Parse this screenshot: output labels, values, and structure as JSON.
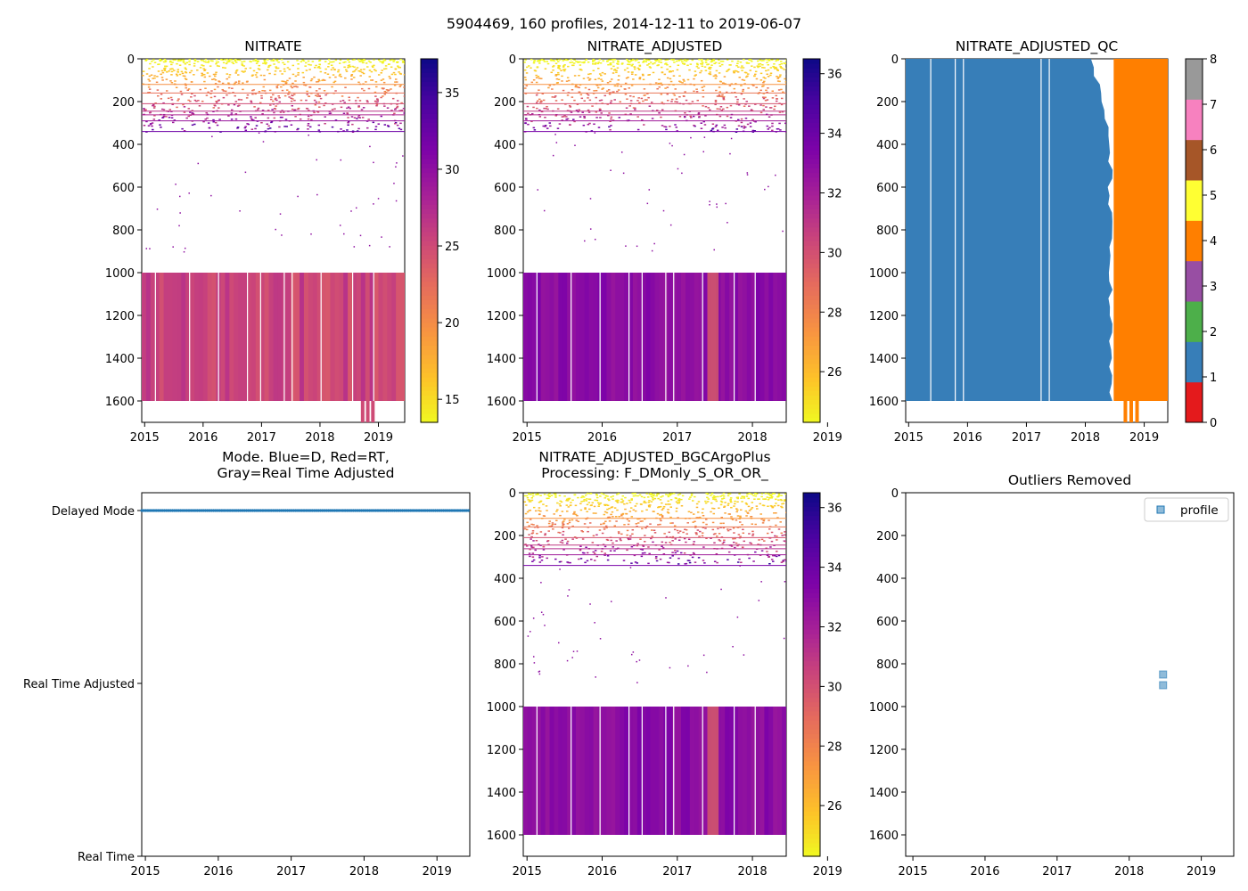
{
  "figure": {
    "suptitle": "5904469, 160 profiles, 2014-12-11 to 2019-06-07",
    "year_ticks": [
      "2015",
      "2016",
      "2017",
      "2018",
      "2019"
    ],
    "depth_ticks": [
      "0",
      "200",
      "400",
      "600",
      "800",
      "1000",
      "1200",
      "1400",
      "1600"
    ]
  },
  "chart_data": [
    {
      "id": "nitrate",
      "type": "heatmap",
      "title": "NITRATE",
      "x_range": [
        2014.95,
        2019.45
      ],
      "y_range": [
        1700,
        0
      ],
      "colormap": "plasma_r",
      "colorbar": {
        "range": [
          13.5,
          37.2
        ],
        "ticks": [
          15,
          20,
          25,
          30,
          35
        ],
        "labels": [
          "15",
          "20",
          "25",
          "30",
          "35"
        ]
      },
      "regions": [
        {
          "kind": "surface-speckle",
          "x": [
            2014.95,
            2019.45
          ],
          "depth": [
            0,
            340
          ],
          "value_range": [
            13,
            37
          ]
        },
        {
          "kind": "sparse-points",
          "x": [
            2015.0,
            2019.45
          ],
          "depth": [
            340,
            900
          ]
        },
        {
          "kind": "deep-block",
          "x": [
            2014.95,
            2019.45
          ],
          "depth": [
            1000,
            1600
          ],
          "value_range": [
            24,
            27
          ]
        },
        {
          "kind": "tail",
          "x": [
            2018.7,
            2018.95
          ],
          "depth": [
            1600,
            1700
          ],
          "value": 25
        }
      ]
    },
    {
      "id": "nitrate-adjusted",
      "type": "heatmap",
      "title": "NITRATE_ADJUSTED",
      "x_range": [
        2014.95,
        2018.45
      ],
      "y_range": [
        1700,
        0
      ],
      "colormap": "plasma_r",
      "colorbar": {
        "range": [
          24.3,
          36.5
        ],
        "ticks": [
          26,
          28,
          30,
          32,
          34,
          36
        ],
        "labels": [
          "26",
          "28",
          "30",
          "32",
          "34",
          "36"
        ]
      },
      "regions": [
        {
          "kind": "surface-speckle",
          "x": [
            2014.95,
            2018.45
          ],
          "depth": [
            0,
            340
          ],
          "value_range": [
            24,
            36
          ]
        },
        {
          "kind": "sparse-points",
          "x": [
            2015.0,
            2018.45
          ],
          "depth": [
            340,
            900
          ]
        },
        {
          "kind": "deep-block",
          "x": [
            2014.95,
            2018.45
          ],
          "depth": [
            1000,
            1600
          ],
          "value_range": [
            32.5,
            33.5
          ]
        },
        {
          "kind": "band",
          "x": [
            2017.4,
            2017.55
          ],
          "depth": [
            1000,
            1600
          ],
          "value": 29
        }
      ]
    },
    {
      "id": "nitrate-adjusted-qc",
      "type": "heatmap",
      "title": "NITRATE_ADJUSTED_QC",
      "x_range": [
        2014.95,
        2019.4
      ],
      "y_range": [
        1700,
        0
      ],
      "colorbar": {
        "range": [
          0,
          8
        ],
        "ticks": [
          0,
          1,
          2,
          3,
          4,
          5,
          6,
          7,
          8
        ],
        "labels": [
          "0",
          "1",
          "2",
          "3",
          "4",
          "5",
          "6",
          "7",
          "8"
        ],
        "colors": [
          "#e41a1c",
          "#377eb8",
          "#4daf4a",
          "#984ea3",
          "#ff7f00",
          "#ffff33",
          "#a65628",
          "#f781bf",
          "#999999"
        ]
      },
      "regions": [
        {
          "kind": "qc-flag",
          "flag": 1,
          "x": [
            2014.95,
            2018.42
          ],
          "depth": [
            0,
            1600
          ]
        },
        {
          "kind": "qc-flag",
          "flag": 4,
          "x": [
            2018.3,
            2019.4
          ],
          "depth": [
            0,
            1600
          ]
        },
        {
          "kind": "qc-flag-tail",
          "flag": 4,
          "x": [
            2018.65,
            2018.95
          ],
          "depth": [
            1600,
            1700
          ]
        }
      ]
    },
    {
      "id": "mode",
      "type": "scatter",
      "title": [
        "Mode. Blue=D, Red=RT,",
        "Gray=Real Time Adjusted"
      ],
      "x_range": [
        2014.95,
        2019.45
      ],
      "y_categories": [
        "Delayed Mode",
        "Real Time Adjusted",
        "Real Time"
      ],
      "series": [
        {
          "name": "D",
          "color": "#1f77b4",
          "category": "Delayed Mode",
          "count": 160,
          "x_range": [
            2014.95,
            2019.43
          ]
        }
      ]
    },
    {
      "id": "bgcargoplus",
      "type": "heatmap",
      "title": [
        "NITRATE_ADJUSTED_BGCArgoPlus",
        "Processing: F_DMonly_S_OR_OR_"
      ],
      "x_range": [
        2014.95,
        2018.45
      ],
      "y_range": [
        1700,
        0
      ],
      "colormap": "plasma_r",
      "colorbar": {
        "range": [
          24.3,
          36.5
        ],
        "ticks": [
          26,
          28,
          30,
          32,
          34,
          36
        ],
        "labels": [
          "26",
          "28",
          "30",
          "32",
          "34",
          "36"
        ]
      },
      "regions": [
        {
          "kind": "surface-speckle",
          "x": [
            2014.95,
            2018.45
          ],
          "depth": [
            0,
            330
          ],
          "value_range": [
            24,
            36
          ]
        },
        {
          "kind": "sparse-points",
          "x": [
            2015.0,
            2018.45
          ],
          "depth": [
            330,
            900
          ]
        },
        {
          "kind": "deep-block",
          "x": [
            2014.95,
            2018.45
          ],
          "depth": [
            1000,
            1600
          ],
          "value_range": [
            32.5,
            33.5
          ]
        },
        {
          "kind": "band",
          "x": [
            2017.4,
            2017.55
          ],
          "depth": [
            1000,
            1600
          ],
          "value": 29
        }
      ]
    },
    {
      "id": "outliers",
      "type": "scatter",
      "title": "Outliers Removed",
      "x_range": [
        2014.9,
        2019.45
      ],
      "y_range": [
        1700,
        0
      ],
      "legend": {
        "label": "profile",
        "location": "top-right"
      },
      "series": [
        {
          "name": "profile",
          "color": "#1f77b4",
          "x": [
            2018.47,
            2018.47
          ],
          "y": [
            850,
            900
          ]
        }
      ]
    }
  ]
}
